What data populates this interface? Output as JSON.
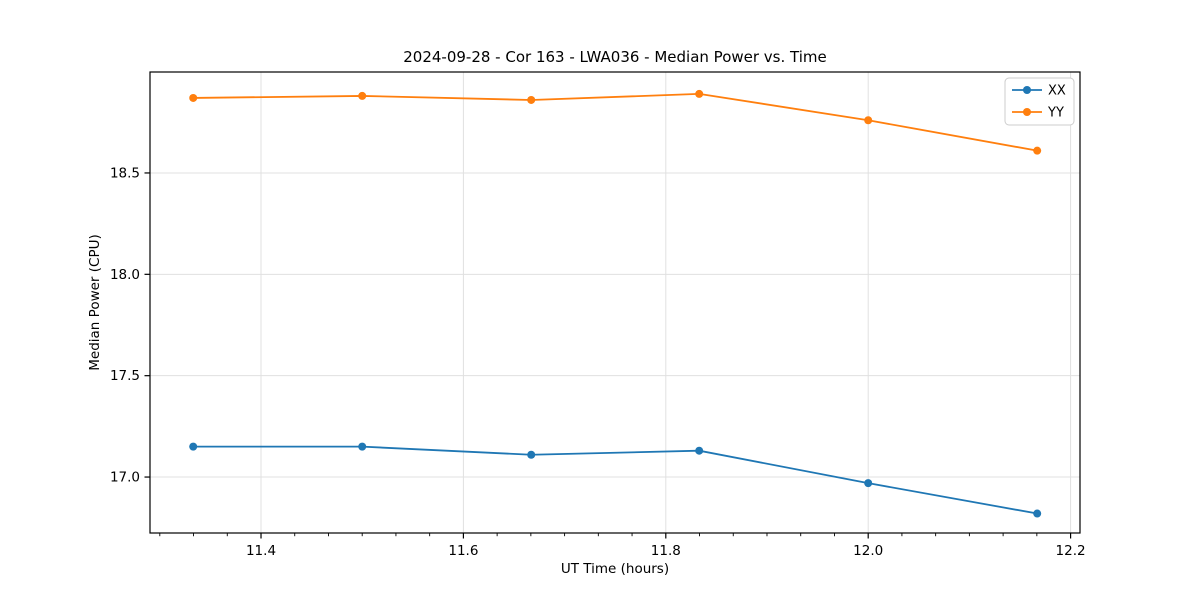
{
  "page": {
    "background": "#ffffff"
  },
  "chart_data": {
    "type": "line",
    "title": "2024-09-28 - Cor 163 - LWA036 - Median Power vs. Time",
    "xlabel": "UT Time (hours)",
    "ylabel": "Median Power (CPU)",
    "x": [
      11.333,
      11.5,
      11.667,
      11.833,
      12.0,
      12.167
    ],
    "series": [
      {
        "name": "XX",
        "color": "#1f77b4",
        "values": [
          17.15,
          17.15,
          17.11,
          17.13,
          16.97,
          16.82
        ]
      },
      {
        "name": "YY",
        "color": "#ff7f0e",
        "values": [
          18.87,
          18.88,
          18.86,
          18.89,
          18.76,
          18.61
        ]
      }
    ],
    "xlim": [
      11.2903,
      12.2093
    ],
    "ylim": [
      16.724,
      18.998
    ],
    "xticks": {
      "values": [
        11.4,
        11.6,
        11.8,
        12.0,
        12.2
      ],
      "labels": [
        "11.4",
        "11.6",
        "11.8",
        "12.0",
        "12.2"
      ]
    },
    "yticks": {
      "values": [
        17.0,
        17.5,
        18.0,
        18.5
      ],
      "labels": [
        "17.0",
        "17.5",
        "18.0",
        "18.5"
      ]
    },
    "x_minor_step": 0.0333333,
    "grid": true,
    "marker": "circle",
    "legend": {
      "position": "upper right",
      "entries": [
        "XX",
        "YY"
      ]
    },
    "colors": {
      "grid": "#e0e0e0",
      "spine": "#000000",
      "tick": "#000000",
      "text": "#000000",
      "legend_border": "#cccccc",
      "legend_face": "#ffffff"
    }
  }
}
